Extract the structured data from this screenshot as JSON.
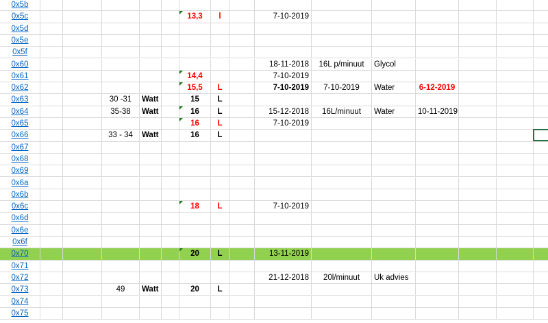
{
  "colors": {
    "link": "#0563c1",
    "red": "#ff0000",
    "highlight": "#92d050",
    "comment": "#1e7b1e",
    "selection": "#217346"
  },
  "rows": [
    {
      "hex": "0x5b"
    },
    {
      "hex": "0x5c",
      "value": "13,3",
      "unit2": "l",
      "date1": "7-10-2019",
      "red": true,
      "comment": true
    },
    {
      "hex": "0x5d"
    },
    {
      "hex": "0x5e"
    },
    {
      "hex": "0x5f"
    },
    {
      "hex": "0x60",
      "date1": "18-11-2018",
      "flow": "16L p/minuut",
      "medium": "Glycol"
    },
    {
      "hex": "0x61",
      "value": "14,4",
      "date1": "7-10-2019",
      "red": true,
      "comment": true
    },
    {
      "hex": "0x62",
      "value": "15,5",
      "unit2": "L",
      "date1": "7-10-2019",
      "date1_bold": true,
      "flow": "7-10-2019",
      "medium": "Water",
      "date3": "6-12-2019",
      "date3_red": true,
      "red": true,
      "comment": true
    },
    {
      "hex": "0x63",
      "power": "30 -31",
      "unit": "Watt",
      "value": "15",
      "unit2": "L"
    },
    {
      "hex": "0x64",
      "power": "35-38",
      "unit": "Watt",
      "value": "16",
      "unit2": "L",
      "date1": "15-12-2018",
      "flow": "16L/minuut",
      "medium": "Water",
      "date3": "10-11-2019",
      "comment": true
    },
    {
      "hex": "0x65",
      "value": "16",
      "unit2": "L",
      "date1": "7-10-2019",
      "red": true,
      "comment": true
    },
    {
      "hex": "0x66",
      "power": "33 - 34",
      "unit": "Watt",
      "value": "16",
      "unit2": "L"
    },
    {
      "hex": "0x67"
    },
    {
      "hex": "0x68"
    },
    {
      "hex": "0x69"
    },
    {
      "hex": "0x6a"
    },
    {
      "hex": "0x6b"
    },
    {
      "hex": "0x6c",
      "value": "18",
      "unit2": "L",
      "date1": "7-10-2019",
      "red": true,
      "comment": true
    },
    {
      "hex": "0x6d"
    },
    {
      "hex": "0x6e"
    },
    {
      "hex": "0x6f"
    },
    {
      "hex": "0x70",
      "value": "20",
      "unit2": "L",
      "date1": "13-11-2019",
      "highlight": true,
      "comment": true
    },
    {
      "hex": "0x71"
    },
    {
      "hex": "0x72",
      "date1": "21-12-2018",
      "flow": "20l/minuut",
      "medium": "Uk advies"
    },
    {
      "hex": "0x73",
      "power": "49",
      "unit": "Watt",
      "value": "20",
      "unit2": "L"
    },
    {
      "hex": "0x74"
    },
    {
      "hex": "0x75"
    }
  ]
}
